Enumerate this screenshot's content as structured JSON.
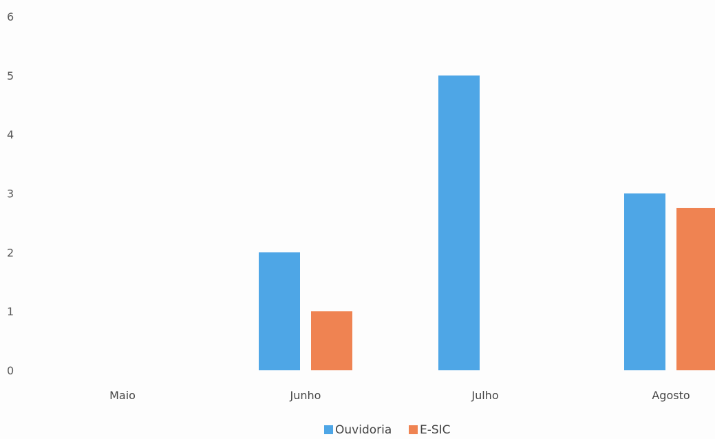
{
  "chart_data": {
    "type": "bar",
    "title": "",
    "xlabel": "",
    "ylabel": "",
    "categories": [
      "Maio",
      "Junho",
      "Julho",
      "Agosto"
    ],
    "series": [
      {
        "name": "Ouvidoria",
        "values": [
          0,
          2,
          5,
          3
        ],
        "color": "#4ea6e6"
      },
      {
        "name": "E-SIC",
        "values": [
          0,
          1,
          0,
          2.75
        ],
        "color": "#ef8352"
      }
    ],
    "ylim": [
      0,
      6
    ],
    "yticks": [
      "0",
      "1",
      "2",
      "3",
      "4",
      "5",
      "6"
    ],
    "grid": false,
    "legend": "bottom-center"
  }
}
